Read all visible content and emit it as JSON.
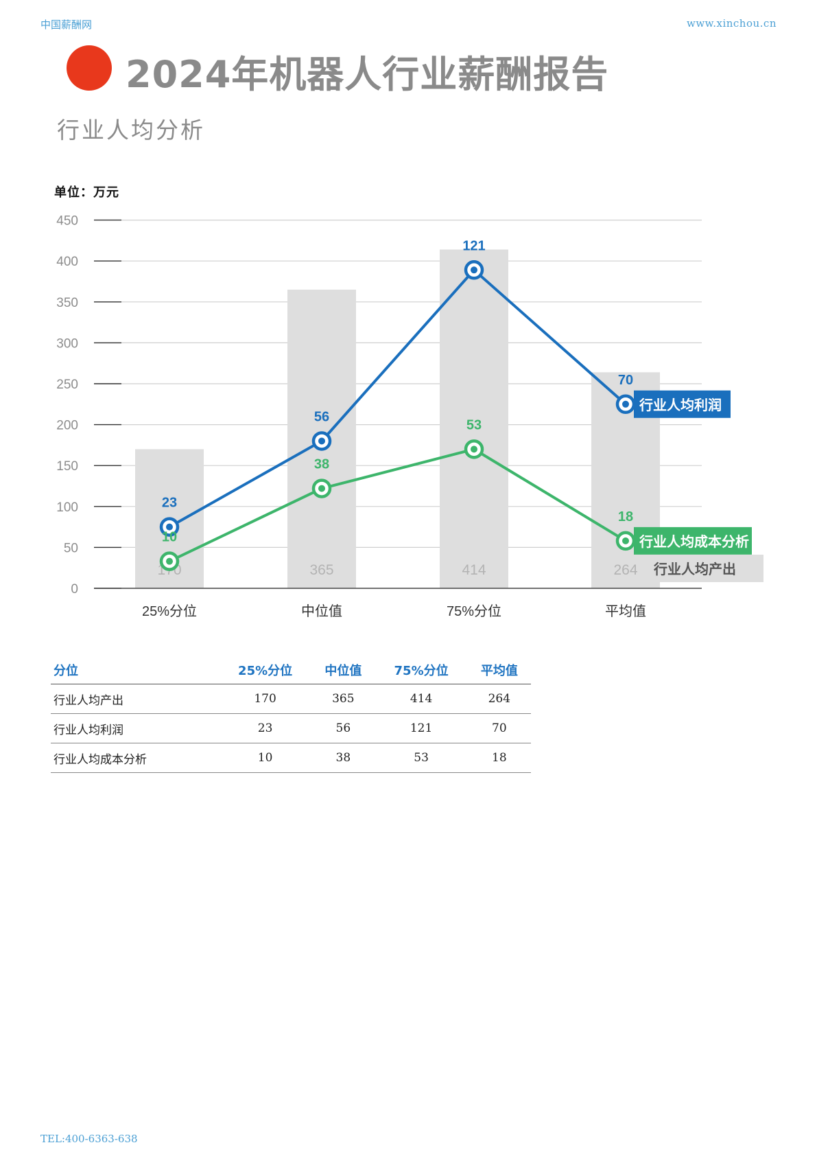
{
  "header": {
    "site_name": "中国薪酬网",
    "url": "www.xinchou.cn"
  },
  "title": "2024年机器人行业薪酬报告",
  "subtitle": "行业人均分析",
  "unit_label": "单位：万元",
  "chart_data": {
    "type": "bar",
    "categories": [
      "25%分位",
      "中位值",
      "75%分位",
      "平均值"
    ],
    "ylim": [
      0,
      450
    ],
    "yticks": [
      0,
      50,
      100,
      150,
      200,
      250,
      300,
      350,
      400,
      450
    ],
    "grid": true,
    "series": [
      {
        "name": "行业人均产出",
        "type": "bar",
        "color": "#dedede",
        "label_color": "#b3b3b3",
        "values": [
          170,
          365,
          414,
          264
        ]
      },
      {
        "name": "行业人均利润",
        "type": "line",
        "color": "#1a6fbd",
        "values": [
          23,
          56,
          121,
          70
        ],
        "plot_positions": [
          75,
          180,
          389,
          225
        ]
      },
      {
        "name": "行业人均成本分析",
        "type": "line",
        "color": "#3db56b",
        "values": [
          10,
          38,
          53,
          18
        ],
        "plot_positions": [
          33,
          122,
          170,
          58
        ]
      }
    ]
  },
  "table": {
    "headers": [
      "分位",
      "25%分位",
      "中位值",
      "75%分位",
      "平均值"
    ],
    "rows": [
      {
        "label": "行业人均产出",
        "values": [
          "170",
          "365",
          "414",
          "264"
        ]
      },
      {
        "label": "行业人均利润",
        "values": [
          "23",
          "56",
          "121",
          "70"
        ]
      },
      {
        "label": "行业人均成本分析",
        "values": [
          "10",
          "38",
          "53",
          "18"
        ]
      }
    ]
  },
  "footer": {
    "tel": "TEL:400-6363-638"
  }
}
